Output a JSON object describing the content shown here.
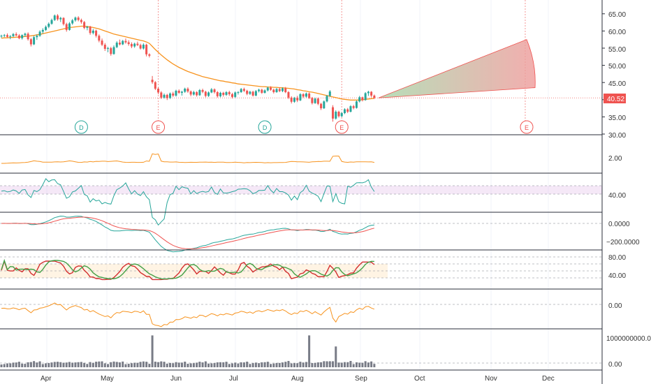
{
  "chart_data": {
    "type": "candlestick",
    "x_labels": [
      "Apr",
      "May",
      "Jun",
      "Jul",
      "Aug",
      "Sep",
      "Oct",
      "Nov",
      "Dec"
    ],
    "price_panel": {
      "y_ticks": [
        "65.00",
        "60.00",
        "55.00",
        "50.00",
        "45.00",
        "40.00",
        "35.00",
        "30.00"
      ],
      "ylim": [
        30,
        68
      ],
      "last_price": "40.52",
      "last_price_color": "#ef5350",
      "candles": [
        [
          58.5,
          58.9,
          58.0,
          58.6
        ],
        [
          58.6,
          59.1,
          58.2,
          58.8
        ],
        [
          58.8,
          59.3,
          58.1,
          58.3
        ],
        [
          58.3,
          58.8,
          57.6,
          58.5
        ],
        [
          58.5,
          59.4,
          58.2,
          59.1
        ],
        [
          59.1,
          59.6,
          58.5,
          58.7
        ],
        [
          58.7,
          59.1,
          57.6,
          57.9
        ],
        [
          57.9,
          59.0,
          57.5,
          58.8
        ],
        [
          58.8,
          59.5,
          58.3,
          59.2
        ],
        [
          59.2,
          59.6,
          57.2,
          57.6
        ],
        [
          57.6,
          58.0,
          55.5,
          56.1
        ],
        [
          56.1,
          58.6,
          55.9,
          58.2
        ],
        [
          58.2,
          59.0,
          57.4,
          58.6
        ],
        [
          58.6,
          60.2,
          58.3,
          59.8
        ],
        [
          59.8,
          60.8,
          59.2,
          60.3
        ],
        [
          60.3,
          61.6,
          60.0,
          61.2
        ],
        [
          61.2,
          62.5,
          60.8,
          62.1
        ],
        [
          62.1,
          63.6,
          61.8,
          63.2
        ],
        [
          63.2,
          64.8,
          62.9,
          64.5
        ],
        [
          64.5,
          64.9,
          63.0,
          63.4
        ],
        [
          63.4,
          64.1,
          62.6,
          63.8
        ],
        [
          63.8,
          64.0,
          61.6,
          62.0
        ],
        [
          62.0,
          62.4,
          59.8,
          60.3
        ],
        [
          60.3,
          62.6,
          60.1,
          62.2
        ],
        [
          62.2,
          63.5,
          61.8,
          63.1
        ],
        [
          63.1,
          64.2,
          62.7,
          63.9
        ],
        [
          63.9,
          64.3,
          62.8,
          63.2
        ],
        [
          63.2,
          63.6,
          62.1,
          62.6
        ],
        [
          62.6,
          62.9,
          60.5,
          60.9
        ],
        [
          60.9,
          61.5,
          60.2,
          61.2
        ],
        [
          61.2,
          61.5,
          58.9,
          59.4
        ],
        [
          59.4,
          60.6,
          59.0,
          60.1
        ],
        [
          60.1,
          60.4,
          58.1,
          58.6
        ],
        [
          58.6,
          59.0,
          56.7,
          57.2
        ],
        [
          57.2,
          57.8,
          55.6,
          56.0
        ],
        [
          56.0,
          56.5,
          54.2,
          54.8
        ],
        [
          54.8,
          55.4,
          53.8,
          55.0
        ],
        [
          55.0,
          55.4,
          52.8,
          53.3
        ],
        [
          53.3,
          55.8,
          53.1,
          55.3
        ],
        [
          55.3,
          57.0,
          55.0,
          56.6
        ],
        [
          56.6,
          57.5,
          55.8,
          56.1
        ],
        [
          56.1,
          57.4,
          55.9,
          57.1
        ],
        [
          57.1,
          57.8,
          56.3,
          56.7
        ],
        [
          56.7,
          57.3,
          55.7,
          56.2
        ],
        [
          56.2,
          56.7,
          55.0,
          55.5
        ],
        [
          55.5,
          56.6,
          55.1,
          56.3
        ],
        [
          56.3,
          56.9,
          55.6,
          55.9
        ],
        [
          55.9,
          56.3,
          54.6,
          54.9
        ],
        [
          54.9,
          56.4,
          54.6,
          56.0
        ],
        [
          56.0,
          56.3,
          52.6,
          53.2
        ],
        [
          53.2,
          53.5,
          52.3,
          52.8
        ],
        [
          45.8,
          46.9,
          44.6,
          45.1
        ],
        [
          45.1,
          45.4,
          42.8,
          43.2
        ],
        [
          43.2,
          43.6,
          41.6,
          42.1
        ],
        [
          42.1,
          42.5,
          40.2,
          40.6
        ],
        [
          40.6,
          41.8,
          40.3,
          41.4
        ],
        [
          41.4,
          41.7,
          39.9,
          40.5
        ],
        [
          40.5,
          42.1,
          40.2,
          41.8
        ],
        [
          41.8,
          42.3,
          40.8,
          41.2
        ],
        [
          41.2,
          42.9,
          40.9,
          42.6
        ],
        [
          42.6,
          43.0,
          41.7,
          42.0
        ],
        [
          42.0,
          42.6,
          41.2,
          42.3
        ],
        [
          42.3,
          43.5,
          42.0,
          43.2
        ],
        [
          43.2,
          43.6,
          42.0,
          42.4
        ],
        [
          42.4,
          42.7,
          41.0,
          41.5
        ],
        [
          41.5,
          42.6,
          41.2,
          42.2
        ],
        [
          42.2,
          42.5,
          40.9,
          41.3
        ],
        [
          41.3,
          43.1,
          41.1,
          42.8
        ],
        [
          42.8,
          43.2,
          41.9,
          42.3
        ],
        [
          42.3,
          42.6,
          40.7,
          41.1
        ],
        [
          41.1,
          42.4,
          40.8,
          42.1
        ],
        [
          42.1,
          43.4,
          41.9,
          43.0
        ],
        [
          43.0,
          43.3,
          41.8,
          42.2
        ],
        [
          42.2,
          42.5,
          40.6,
          41.0
        ],
        [
          41.0,
          42.3,
          40.7,
          42.0
        ],
        [
          42.0,
          42.3,
          40.9,
          41.4
        ],
        [
          41.4,
          42.5,
          41.1,
          42.2
        ],
        [
          42.2,
          42.6,
          41.1,
          41.6
        ],
        [
          41.6,
          42.0,
          40.4,
          40.8
        ],
        [
          40.8,
          42.4,
          40.5,
          42.1
        ],
        [
          42.1,
          42.5,
          41.5,
          42.2
        ],
        [
          42.2,
          43.4,
          42.0,
          43.1
        ],
        [
          43.1,
          43.5,
          42.2,
          42.6
        ],
        [
          42.6,
          42.9,
          41.3,
          41.7
        ],
        [
          41.7,
          42.6,
          41.4,
          42.3
        ],
        [
          42.3,
          42.6,
          40.9,
          41.2
        ],
        [
          41.2,
          42.8,
          41.0,
          42.5
        ],
        [
          42.5,
          43.2,
          42.1,
          42.9
        ],
        [
          42.9,
          43.2,
          41.7,
          42.0
        ],
        [
          42.0,
          43.0,
          41.8,
          42.7
        ],
        [
          42.7,
          43.8,
          42.4,
          43.5
        ],
        [
          43.5,
          43.9,
          42.6,
          42.9
        ],
        [
          42.9,
          43.2,
          41.8,
          42.2
        ],
        [
          42.2,
          43.4,
          42.0,
          43.1
        ],
        [
          43.1,
          43.6,
          42.2,
          42.5
        ],
        [
          42.5,
          43.6,
          42.2,
          43.3
        ],
        [
          43.3,
          43.7,
          41.9,
          42.2
        ],
        [
          42.2,
          42.5,
          40.2,
          40.6
        ],
        [
          40.6,
          41.0,
          38.9,
          39.4
        ],
        [
          39.4,
          40.8,
          39.1,
          40.5
        ],
        [
          40.5,
          41.1,
          39.3,
          39.8
        ],
        [
          39.8,
          41.9,
          39.6,
          41.6
        ],
        [
          41.6,
          41.9,
          40.5,
          40.9
        ],
        [
          40.9,
          42.1,
          40.6,
          41.8
        ],
        [
          41.8,
          42.1,
          40.2,
          40.5
        ],
        [
          40.5,
          40.8,
          38.6,
          39.0
        ],
        [
          39.0,
          40.6,
          38.8,
          40.3
        ],
        [
          40.3,
          40.6,
          38.4,
          38.8
        ],
        [
          38.8,
          39.1,
          37.0,
          37.5
        ],
        [
          37.5,
          39.8,
          37.3,
          39.5
        ],
        [
          39.5,
          41.4,
          39.2,
          41.1
        ],
        [
          41.1,
          42.8,
          40.8,
          42.4
        ],
        [
          37.8,
          38.4,
          33.6,
          34.5
        ],
        [
          34.5,
          36.9,
          34.2,
          36.5
        ],
        [
          36.5,
          36.8,
          34.8,
          35.2
        ],
        [
          35.2,
          36.4,
          34.9,
          36.1
        ],
        [
          36.1,
          37.5,
          35.8,
          37.2
        ],
        [
          37.2,
          37.6,
          36.1,
          36.5
        ],
        [
          36.5,
          38.4,
          36.3,
          38.1
        ],
        [
          38.1,
          38.5,
          37.2,
          37.6
        ],
        [
          37.6,
          39.8,
          37.4,
          39.5
        ],
        [
          39.5,
          41.1,
          39.2,
          40.7
        ],
        [
          40.7,
          40.9,
          39.5,
          39.9
        ],
        [
          39.9,
          42.2,
          39.7,
          41.9
        ],
        [
          41.9,
          42.6,
          41.1,
          42.3
        ],
        [
          42.3,
          42.5,
          40.7,
          41.2
        ],
        [
          41.2,
          41.5,
          40.2,
          40.52
        ]
      ],
      "ma": [
        57.9,
        58.0,
        58.0,
        58.1,
        58.1,
        58.2,
        58.2,
        58.3,
        58.4,
        58.5,
        58.6,
        58.7,
        58.9,
        59.0,
        59.2,
        59.4,
        59.6,
        59.8,
        60.0,
        60.2,
        60.4,
        60.6,
        60.8,
        61.0,
        61.1,
        61.2,
        61.3,
        61.4,
        61.4,
        61.3,
        61.2,
        61.0,
        60.8,
        60.6,
        60.3,
        60.0,
        59.7,
        59.4,
        59.1,
        58.9,
        58.7,
        58.5,
        58.3,
        58.1,
        57.9,
        57.7,
        57.5,
        57.3,
        57.1,
        56.8,
        56.4,
        55.5,
        54.6,
        53.8,
        53.0,
        52.3,
        51.6,
        51.0,
        50.4,
        49.9,
        49.4,
        49.0,
        48.6,
        48.2,
        47.9,
        47.6,
        47.3,
        47.0,
        46.7,
        46.5,
        46.3,
        46.1,
        45.9,
        45.7,
        45.5,
        45.4,
        45.2,
        45.1,
        44.9,
        44.8,
        44.6,
        44.5,
        44.4,
        44.3,
        44.2,
        44.1,
        44.0,
        43.9,
        43.8,
        43.8,
        43.7,
        43.7,
        43.6,
        43.6,
        43.5,
        43.5,
        43.4,
        43.3,
        43.2,
        43.1,
        42.9,
        42.8,
        42.6,
        42.5,
        42.3,
        42.2,
        42.0,
        41.8,
        41.6,
        41.4,
        41.2,
        41.0,
        40.8,
        40.6,
        40.4,
        40.2,
        40.1,
        40.0,
        39.9,
        39.9,
        39.9,
        39.9,
        40.0,
        40.1,
        40.2,
        40.3,
        40.4
      ],
      "markers": [
        {
          "label": "D",
          "color": "#26a69a"
        },
        {
          "label": "E",
          "color": "#ef5350"
        },
        {
          "label": "D",
          "color": "#26a69a"
        },
        {
          "label": "E",
          "color": "#ef5350"
        },
        {
          "label": "E",
          "color": "#ef5350"
        }
      ],
      "forecast_cone": {
        "start": 40.52,
        "upper": 57.5,
        "lower": 43.5
      }
    },
    "indicator_panels": [
      {
        "id": "atr",
        "ticks": [
          "2.00"
        ],
        "line_color": "#f7931e"
      },
      {
        "id": "rsi",
        "ticks": [
          "40.00"
        ],
        "line_color": "#26a69a"
      },
      {
        "id": "macd",
        "ticks": [
          "0.0000",
          "−200.0000"
        ]
      },
      {
        "id": "stoch",
        "ticks": [
          "80.00",
          "40.00"
        ]
      },
      {
        "id": "cci",
        "ticks": [
          "0.00"
        ],
        "line_color": "#f7931e"
      },
      {
        "id": "volume",
        "ticks": [
          "1000000000.00",
          "0.00"
        ]
      }
    ]
  }
}
